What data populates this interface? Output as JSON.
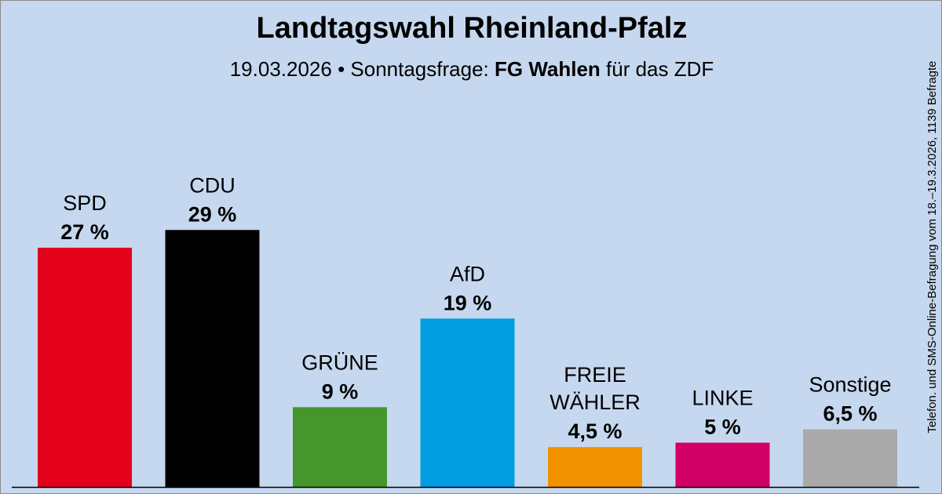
{
  "header": {
    "title": "Landtagswahl Rheinland-Pfalz",
    "subtitle_pre": "19.03.2026 • Sonntagsfrage:",
    "subtitle_institute": "FG Wahlen",
    "subtitle_post": "für das ZDF"
  },
  "side_note": "Telefon. und SMS-Online-Befragung vom 18.–19.3.2026, 1139 Befragte",
  "chart_data": {
    "type": "bar",
    "title": "Landtagswahl Rheinland-Pfalz",
    "categories": [
      "SPD",
      "CDU",
      "GRÜNE",
      "AfD",
      "FREIE WÄHLER",
      "LINKE",
      "Sonstige"
    ],
    "label_lines": [
      [
        "SPD"
      ],
      [
        "CDU"
      ],
      [
        "GRÜNE"
      ],
      [
        "AfD"
      ],
      [
        "FREIE",
        "WÄHLER"
      ],
      [
        "LINKE"
      ],
      [
        "Sonstige"
      ]
    ],
    "values": [
      27,
      29,
      9,
      19,
      4.5,
      5,
      6.5
    ],
    "value_labels": [
      "27 %",
      "29 %",
      "9 %",
      "19 %",
      "4,5 %",
      "5 %",
      "6,5 %"
    ],
    "colors": [
      "#e3001b",
      "#000000",
      "#46962b",
      "#009ee0",
      "#f29200",
      "#d10066",
      "#aaaaaa"
    ],
    "unit": "%",
    "grid": false,
    "legend": "none"
  }
}
